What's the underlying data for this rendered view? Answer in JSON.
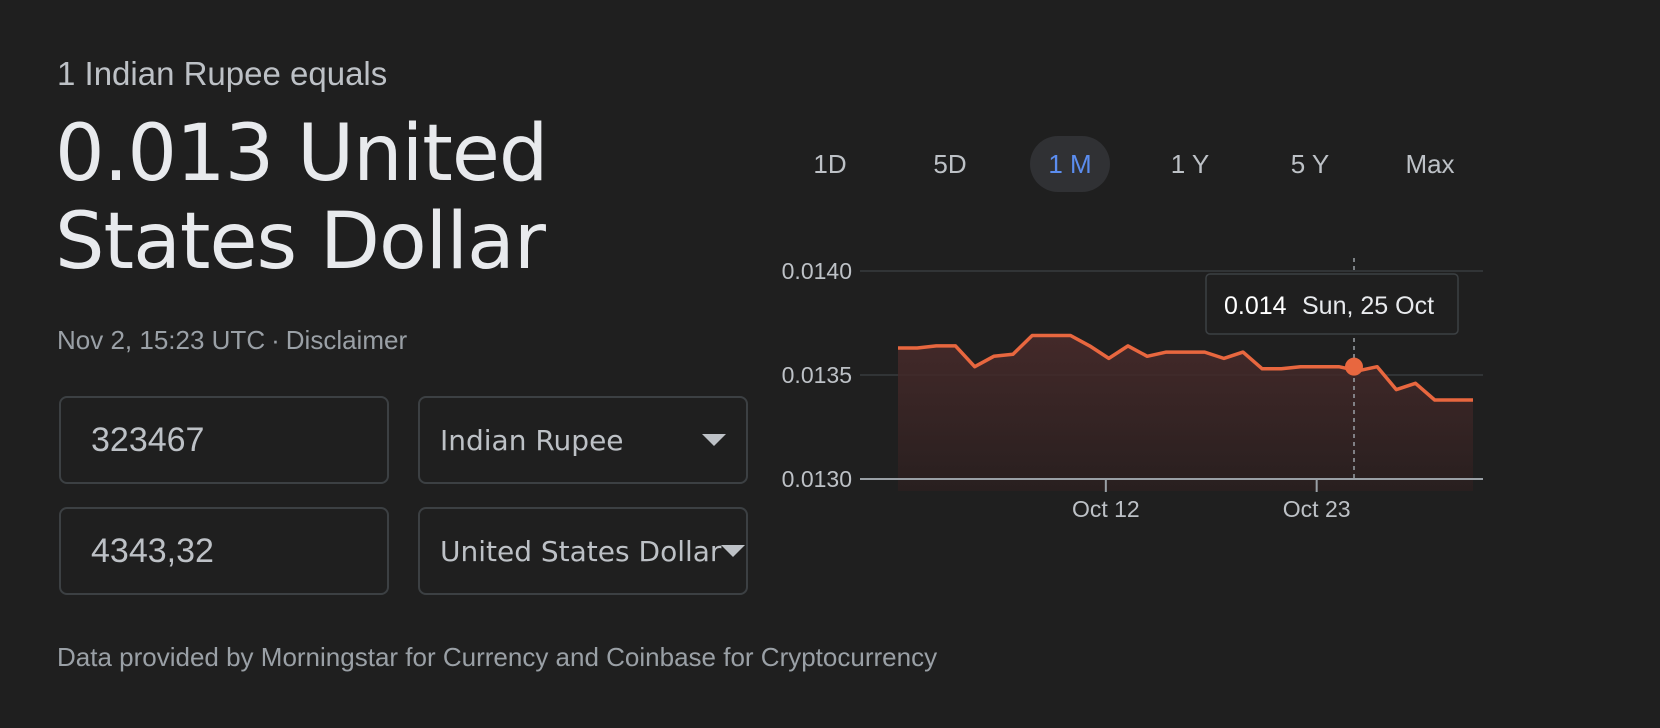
{
  "header": {
    "subtitle": "1 Indian Rupee equals",
    "rate_line1": "0.013 United",
    "rate_line2": "States Dollar",
    "timestamp": "Nov 2, 15:23 UTC",
    "separator": "·",
    "disclaimer": "Disclaimer"
  },
  "converter": {
    "from_amount": "323467",
    "from_currency": "Indian Rupee",
    "to_amount": "4343,32",
    "to_currency": "United States Dollar"
  },
  "footer": "Data provided by Morningstar for Currency and Coinbase for Cryptocurrency",
  "range_tabs": [
    {
      "label": "1D",
      "active": false
    },
    {
      "label": "5D",
      "active": false
    },
    {
      "label": "1 M",
      "active": true
    },
    {
      "label": "1 Y",
      "active": false
    },
    {
      "label": "5 Y",
      "active": false
    },
    {
      "label": "Max",
      "active": false
    }
  ],
  "colors": {
    "line": "#e8673f",
    "fill_top": "#4a2b2b",
    "fill_bottom": "#2a1f1f",
    "active_tab": "#5b8def",
    "grid": "#3c4043"
  },
  "chart_data": {
    "type": "area",
    "ylim": [
      0.013,
      0.014
    ],
    "y_ticks": [
      "0.0140",
      "0.0135",
      "0.0130"
    ],
    "x_ticks": [
      "Oct 12",
      "Oct 23"
    ],
    "series": [
      {
        "values": [
          0.01363,
          0.01363,
          0.01364,
          0.01364,
          0.01354,
          0.01359,
          0.0136,
          0.01369,
          0.01369,
          0.01369,
          0.01364,
          0.01358,
          0.01364,
          0.01359,
          0.01361,
          0.01361,
          0.01361,
          0.01358,
          0.01361,
          0.01353,
          0.01353,
          0.01354,
          0.01354,
          0.01354,
          0.01352,
          0.01354,
          0.01343,
          0.01346,
          0.01338,
          0.01338,
          0.01338
        ]
      }
    ],
    "tooltip": {
      "value": "0.014",
      "date": "Sun, 25 Oct"
    }
  }
}
